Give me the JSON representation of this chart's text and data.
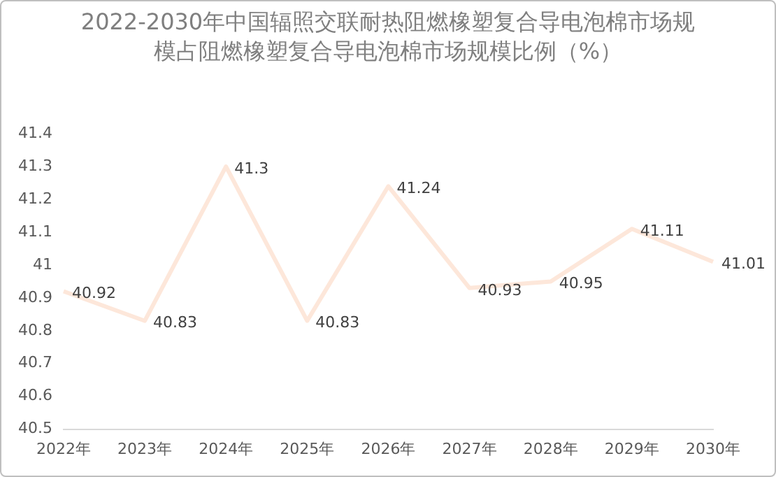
{
  "chart_data": {
    "type": "line",
    "title": "2022-2030年中国辐照交联耐热阻燃橡塑复合导电泡棉市场规模占阻燃橡塑复合导电泡棉市场规模比例（%）",
    "categories": [
      "2022年",
      "2023年",
      "2024年",
      "2025年",
      "2026年",
      "2027年",
      "2028年",
      "2029年",
      "2030年"
    ],
    "series": [
      {
        "color": "#fde7da",
        "values": [
          40.92,
          40.83,
          41.3,
          40.83,
          41.24,
          40.93,
          40.95,
          41.11,
          41.01
        ]
      }
    ],
    "ylim": [
      40.5,
      41.4
    ],
    "yticks": [
      40.5,
      40.6,
      40.7,
      40.8,
      40.9,
      41,
      41.1,
      41.2,
      41.3,
      41.4
    ],
    "data_labels": true,
    "grid": false,
    "legend": false,
    "marker": "none",
    "line_style": "solid"
  }
}
